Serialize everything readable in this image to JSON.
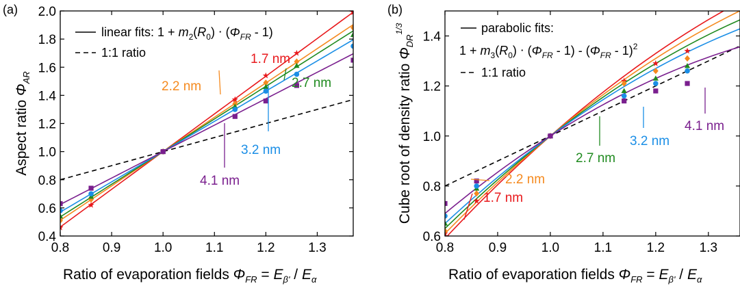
{
  "chart_data": [
    {
      "type": "line",
      "panel_label": "(a)",
      "xlabel_text": "Ratio of evaporation fields",
      "xlabel_formula": [
        "Φ",
        "FR",
        " = E",
        "β'",
        " / E",
        "α"
      ],
      "ylabel_text": "Aspect ratio",
      "ylabel_symbol": [
        "Φ",
        "AR"
      ],
      "xlim": [
        0.8,
        1.37
      ],
      "ylim": [
        0.4,
        2.0
      ],
      "xticks": [
        "0.8",
        "0.9",
        "1.0",
        "1.1",
        "1.2",
        "1.3"
      ],
      "yticks": [
        "0.4",
        "0.6",
        "0.8",
        "1.0",
        "1.2",
        "1.4",
        "1.6",
        "1.8",
        "2.0"
      ],
      "legend": {
        "placement": "top-left",
        "fit_label": "linear fits: 1 + m₂(R₀) ⋅ (Φ_FR - 1)",
        "ratio_label": "1:1 ratio"
      },
      "fit_type": "linear",
      "series": [
        {
          "name": "1.7 nm",
          "color": "#e8191c",
          "marker": "star",
          "slope": 2.68,
          "x": [
            0.8,
            0.86,
            1.0,
            1.14,
            1.2,
            1.26,
            1.37
          ],
          "y": [
            0.46,
            0.62,
            1.0,
            1.37,
            1.54,
            1.7,
            1.99
          ]
        },
        {
          "name": "2.2 nm",
          "color": "#f58a1f",
          "marker": "diamond",
          "slope": 2.44,
          "x": [
            0.8,
            0.86,
            1.0,
            1.14,
            1.2,
            1.26,
            1.37
          ],
          "y": [
            0.51,
            0.66,
            1.0,
            1.34,
            1.49,
            1.64,
            1.88
          ]
        },
        {
          "name": "2.7 nm",
          "color": "#1f8a1f",
          "marker": "triangle",
          "slope": 2.32,
          "x": [
            0.8,
            0.86,
            1.0,
            1.14,
            1.2,
            1.26,
            1.37
          ],
          "y": [
            0.54,
            0.68,
            1.0,
            1.32,
            1.46,
            1.61,
            1.83
          ]
        },
        {
          "name": "3.2 nm",
          "color": "#1a8ee6",
          "marker": "circle",
          "slope": 2.15,
          "x": [
            0.8,
            0.86,
            1.0,
            1.14,
            1.2,
            1.26,
            1.37
          ],
          "y": [
            0.58,
            0.7,
            1.0,
            1.3,
            1.43,
            1.55,
            1.75
          ]
        },
        {
          "name": "4.1 nm",
          "color": "#7a1f8e",
          "marker": "square",
          "slope": 1.88,
          "x": [
            0.8,
            0.86,
            1.0,
            1.14,
            1.2,
            1.26,
            1.37
          ],
          "y": [
            0.63,
            0.74,
            1.0,
            1.25,
            1.36,
            1.47,
            1.65
          ]
        }
      ],
      "reference_line": {
        "name": "1:1 ratio",
        "slope": 1.0
      }
    },
    {
      "type": "line",
      "panel_label": "(b)",
      "xlabel_text": "Ratio of evaporation fields",
      "xlabel_formula": [
        "Φ",
        "FR",
        " = E",
        "β'",
        " / E",
        "α"
      ],
      "ylabel_text": "Cube root of density ratio",
      "ylabel_symbol": [
        "Φ",
        "DR",
        "1/3"
      ],
      "xlim": [
        0.8,
        1.36
      ],
      "ylim": [
        0.6,
        1.5
      ],
      "xticks": [
        "0.8",
        "0.9",
        "1.0",
        "1.1",
        "1.2",
        "1.3"
      ],
      "yticks": [
        "0.6",
        "0.8",
        "1.0",
        "1.2",
        "1.4"
      ],
      "legend": {
        "placement": "top-left",
        "fit_label": "parabolic fits:",
        "fit_formula": "1 + m₃(R₀) ⋅ (Φ_FR - 1) - (Φ_FR - 1)²",
        "ratio_label": "1:1 ratio"
      },
      "fit_type": "parabolic",
      "series": [
        {
          "name": "1.7 nm",
          "color": "#e8191c",
          "marker": "star",
          "slope": 1.85,
          "x": [
            0.8,
            0.86,
            1.0,
            1.14,
            1.2,
            1.26
          ],
          "y": [
            0.61,
            0.74,
            1.0,
            1.22,
            1.29,
            1.34
          ]
        },
        {
          "name": "2.2 nm",
          "color": "#f58a1f",
          "marker": "diamond",
          "slope": 1.75,
          "x": [
            0.8,
            0.86,
            1.0,
            1.14,
            1.2,
            1.26
          ],
          "y": [
            0.62,
            0.77,
            1.0,
            1.21,
            1.26,
            1.31
          ]
        },
        {
          "name": "2.7 nm",
          "color": "#1f8a1f",
          "marker": "triangle",
          "slope": 1.65,
          "x": [
            0.8,
            0.86,
            1.0,
            1.14,
            1.2,
            1.26
          ],
          "y": [
            0.65,
            0.79,
            1.0,
            1.18,
            1.23,
            1.28
          ]
        },
        {
          "name": "3.2 nm",
          "color": "#1a8ee6",
          "marker": "circle",
          "slope": 1.55,
          "x": [
            0.8,
            0.86,
            1.0,
            1.14,
            1.2,
            1.26
          ],
          "y": [
            0.68,
            0.8,
            1.0,
            1.16,
            1.21,
            1.26
          ]
        },
        {
          "name": "4.1 nm",
          "color": "#7a1f8e",
          "marker": "square",
          "slope": 1.35,
          "x": [
            0.8,
            0.86,
            1.0,
            1.14,
            1.2,
            1.26
          ],
          "y": [
            0.73,
            0.82,
            1.0,
            1.14,
            1.18,
            1.21
          ]
        }
      ],
      "reference_line": {
        "name": "1:1 ratio",
        "slope": 1.0
      }
    }
  ]
}
